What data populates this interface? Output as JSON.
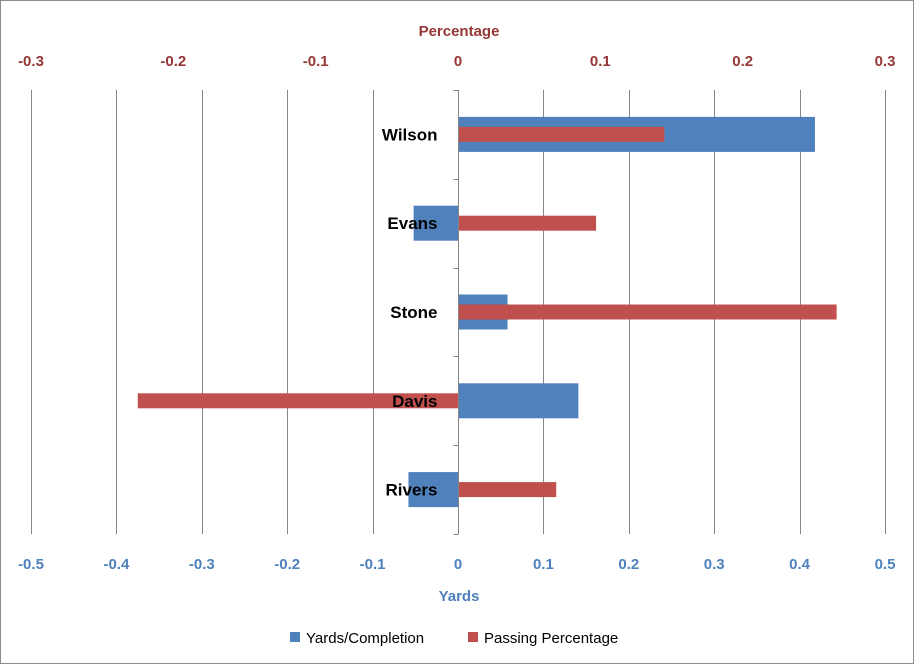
{
  "chart_data": {
    "type": "bar",
    "orientation": "horizontal",
    "categories": [
      "Wilson",
      "Evans",
      "Stone",
      "Davis",
      "Rivers"
    ],
    "series": [
      {
        "name": "Yards/Completion",
        "axis": "bottom",
        "color": "#4f81bd",
        "values": [
          0.418,
          -0.052,
          0.058,
          0.141,
          -0.058
        ]
      },
      {
        "name": "Passing Percentage",
        "axis": "top",
        "color": "#c0504d",
        "values": [
          0.145,
          0.097,
          0.266,
          -0.225,
          0.069
        ]
      }
    ],
    "xlabel": "Yards",
    "x2label": "Percentage",
    "xlim": [
      -0.5,
      0.5
    ],
    "x2lim": [
      -0.3,
      0.3
    ],
    "xticks": [
      "-0.5",
      "-0.4",
      "-0.3",
      "-0.2",
      "-0.1",
      "0",
      "0.1",
      "0.2",
      "0.3",
      "0.4",
      "0.5"
    ],
    "x2ticks": [
      "-0.3",
      "-0.2",
      "-0.1",
      "0",
      "0.1",
      "0.2",
      "0.3"
    ],
    "grid": "vertical",
    "legend": "bottom"
  }
}
